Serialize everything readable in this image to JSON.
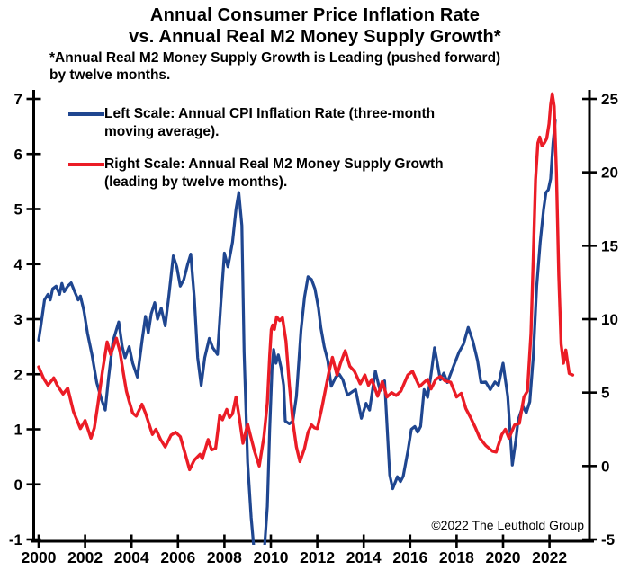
{
  "header": {
    "title_line1": "Annual Consumer Price Inflation Rate",
    "title_line2": "vs. Annual Real M2 Money Supply Growth*",
    "subtitle_line1": "*Annual Real M2 Money Supply Growth is Leading (pushed forward)",
    "subtitle_line2": "by twelve months."
  },
  "legend": {
    "entries": [
      {
        "name": "cpi",
        "color": "#1F4690",
        "line1": "Left Scale: Annual CPI Inflation Rate (three-month",
        "line2": "moving average)."
      },
      {
        "name": "m2",
        "color": "#EB1C26",
        "line1": "Right Scale: Annual Real M2 Money Supply Growth",
        "line2": "(leading by twelve months)."
      }
    ]
  },
  "copyright": "©2022 The Leuthold Group",
  "colors": {
    "cpi_blue": "#1F4690",
    "m2_red": "#EB1C26",
    "axis": "#000000",
    "background": "#FFFFFF"
  },
  "chart_data": {
    "type": "line",
    "title": "Annual Consumer Price Inflation Rate vs. Annual Real M2 Money Supply Growth*",
    "subtitle": "*Annual Real M2 Money Supply Growth is Leading (pushed forward) by twelve months.",
    "grid": false,
    "legend_position": "top-left",
    "x_axis": {
      "tick_labels": [
        2000,
        2002,
        2004,
        2006,
        2008,
        2010,
        2012,
        2014,
        2016,
        2018,
        2020,
        2022
      ],
      "range": [
        2000,
        2023.7
      ]
    },
    "left_y_axis": {
      "ticks": [
        7,
        6,
        5,
        4,
        3,
        2,
        1,
        0,
        -1
      ],
      "range": [
        -1,
        7
      ]
    },
    "right_y_axis": {
      "ticks": [
        25,
        20,
        15,
        10,
        5,
        0,
        -5
      ],
      "range": [
        -5,
        25
      ]
    },
    "series": [
      {
        "name": "Annual CPI Inflation Rate (three-month moving average)",
        "axis": "left",
        "color": "#1F4690",
        "points": [
          [
            2000.0,
            2.62
          ],
          [
            2000.1,
            2.9
          ],
          [
            2000.25,
            3.35
          ],
          [
            2000.4,
            3.45
          ],
          [
            2000.5,
            3.35
          ],
          [
            2000.6,
            3.55
          ],
          [
            2000.75,
            3.6
          ],
          [
            2000.9,
            3.45
          ],
          [
            2001.0,
            3.65
          ],
          [
            2001.1,
            3.5
          ],
          [
            2001.25,
            3.6
          ],
          [
            2001.4,
            3.66
          ],
          [
            2001.55,
            3.5
          ],
          [
            2001.7,
            3.35
          ],
          [
            2001.8,
            3.42
          ],
          [
            2001.95,
            3.15
          ],
          [
            2002.1,
            2.75
          ],
          [
            2002.3,
            2.35
          ],
          [
            2002.5,
            1.85
          ],
          [
            2002.7,
            1.55
          ],
          [
            2002.87,
            1.35
          ],
          [
            2003.0,
            1.9
          ],
          [
            2003.2,
            2.6
          ],
          [
            2003.45,
            2.95
          ],
          [
            2003.6,
            2.5
          ],
          [
            2003.72,
            2.3
          ],
          [
            2003.9,
            2.5
          ],
          [
            2004.05,
            2.2
          ],
          [
            2004.25,
            1.95
          ],
          [
            2004.45,
            2.6
          ],
          [
            2004.6,
            3.05
          ],
          [
            2004.72,
            2.75
          ],
          [
            2004.85,
            3.1
          ],
          [
            2005.0,
            3.3
          ],
          [
            2005.12,
            3.0
          ],
          [
            2005.28,
            3.2
          ],
          [
            2005.45,
            2.88
          ],
          [
            2005.6,
            3.4
          ],
          [
            2005.8,
            4.15
          ],
          [
            2005.95,
            3.95
          ],
          [
            2006.1,
            3.6
          ],
          [
            2006.25,
            3.72
          ],
          [
            2006.42,
            4.0
          ],
          [
            2006.55,
            4.18
          ],
          [
            2006.7,
            3.4
          ],
          [
            2006.85,
            2.3
          ],
          [
            2007.0,
            1.8
          ],
          [
            2007.15,
            2.3
          ],
          [
            2007.35,
            2.65
          ],
          [
            2007.5,
            2.48
          ],
          [
            2007.7,
            2.36
          ],
          [
            2007.85,
            3.3
          ],
          [
            2008.0,
            4.2
          ],
          [
            2008.15,
            3.95
          ],
          [
            2008.35,
            4.4
          ],
          [
            2008.5,
            5.0
          ],
          [
            2008.62,
            5.3
          ],
          [
            2008.75,
            4.7
          ],
          [
            2008.85,
            2.4
          ],
          [
            2009.0,
            0.4
          ],
          [
            2009.15,
            -0.6
          ],
          [
            2009.3,
            -1.3
          ],
          [
            2009.5,
            -1.7
          ],
          [
            2009.7,
            -1.3
          ],
          [
            2009.85,
            -0.4
          ],
          [
            2009.95,
            1.0
          ],
          [
            2010.05,
            2.1
          ],
          [
            2010.12,
            2.45
          ],
          [
            2010.22,
            2.2
          ],
          [
            2010.32,
            2.35
          ],
          [
            2010.45,
            2.1
          ],
          [
            2010.55,
            1.8
          ],
          [
            2010.62,
            1.15
          ],
          [
            2010.8,
            1.1
          ],
          [
            2010.95,
            1.15
          ],
          [
            2011.1,
            1.6
          ],
          [
            2011.3,
            2.8
          ],
          [
            2011.45,
            3.4
          ],
          [
            2011.6,
            3.77
          ],
          [
            2011.75,
            3.72
          ],
          [
            2011.9,
            3.55
          ],
          [
            2012.05,
            3.2
          ],
          [
            2012.15,
            2.85
          ],
          [
            2012.3,
            2.5
          ],
          [
            2012.45,
            2.25
          ],
          [
            2012.6,
            1.78
          ],
          [
            2012.8,
            1.95
          ],
          [
            2012.95,
            2.0
          ],
          [
            2013.1,
            1.9
          ],
          [
            2013.3,
            1.62
          ],
          [
            2013.5,
            1.68
          ],
          [
            2013.65,
            1.72
          ],
          [
            2013.9,
            1.2
          ],
          [
            2014.1,
            1.47
          ],
          [
            2014.25,
            1.35
          ],
          [
            2014.5,
            2.06
          ],
          [
            2014.7,
            1.7
          ],
          [
            2014.9,
            1.88
          ],
          [
            2015.0,
            1.1
          ],
          [
            2015.12,
            0.17
          ],
          [
            2015.25,
            -0.08
          ],
          [
            2015.45,
            0.14
          ],
          [
            2015.58,
            0.05
          ],
          [
            2015.7,
            0.15
          ],
          [
            2015.9,
            0.6
          ],
          [
            2016.05,
            1.0
          ],
          [
            2016.2,
            1.05
          ],
          [
            2016.32,
            0.95
          ],
          [
            2016.45,
            1.05
          ],
          [
            2016.6,
            1.72
          ],
          [
            2016.75,
            1.58
          ],
          [
            2016.9,
            2.0
          ],
          [
            2017.05,
            2.48
          ],
          [
            2017.3,
            1.9
          ],
          [
            2017.45,
            2.02
          ],
          [
            2017.6,
            1.85
          ],
          [
            2017.9,
            2.18
          ],
          [
            2018.1,
            2.4
          ],
          [
            2018.3,
            2.55
          ],
          [
            2018.5,
            2.85
          ],
          [
            2018.7,
            2.6
          ],
          [
            2018.9,
            2.25
          ],
          [
            2019.05,
            1.85
          ],
          [
            2019.25,
            1.86
          ],
          [
            2019.45,
            1.72
          ],
          [
            2019.65,
            1.86
          ],
          [
            2019.8,
            1.8
          ],
          [
            2020.0,
            2.2
          ],
          [
            2020.2,
            1.6
          ],
          [
            2020.4,
            0.35
          ],
          [
            2020.55,
            0.8
          ],
          [
            2020.65,
            1.17
          ],
          [
            2020.85,
            1.42
          ],
          [
            2021.0,
            1.3
          ],
          [
            2021.15,
            1.5
          ],
          [
            2021.3,
            2.3
          ],
          [
            2021.45,
            3.6
          ],
          [
            2021.6,
            4.4
          ],
          [
            2021.75,
            5.0
          ],
          [
            2021.85,
            5.3
          ],
          [
            2021.95,
            5.35
          ],
          [
            2022.05,
            5.55
          ],
          [
            2022.15,
            6.2
          ],
          [
            2022.25,
            6.62
          ]
        ]
      },
      {
        "name": "Annual Real M2 Money Supply Growth (leading by twelve months)",
        "axis": "right",
        "color": "#EB1C26",
        "points": [
          [
            2000.0,
            6.75
          ],
          [
            2000.2,
            6.0
          ],
          [
            2000.4,
            5.5
          ],
          [
            2000.65,
            6.0
          ],
          [
            2000.8,
            5.5
          ],
          [
            2001.05,
            4.9
          ],
          [
            2001.25,
            5.3
          ],
          [
            2001.5,
            3.7
          ],
          [
            2001.8,
            2.55
          ],
          [
            2002.0,
            3.1
          ],
          [
            2002.25,
            1.9
          ],
          [
            2002.4,
            2.6
          ],
          [
            2002.55,
            4.2
          ],
          [
            2002.75,
            6.5
          ],
          [
            2002.95,
            8.45
          ],
          [
            2003.1,
            7.6
          ],
          [
            2003.35,
            8.7
          ],
          [
            2003.5,
            7.8
          ],
          [
            2003.65,
            6.3
          ],
          [
            2003.78,
            5.1
          ],
          [
            2003.9,
            4.4
          ],
          [
            2004.05,
            3.6
          ],
          [
            2004.2,
            3.4
          ],
          [
            2004.45,
            4.2
          ],
          [
            2004.6,
            3.6
          ],
          [
            2004.9,
            2.15
          ],
          [
            2005.05,
            2.5
          ],
          [
            2005.25,
            1.8
          ],
          [
            2005.45,
            1.3
          ],
          [
            2005.7,
            2.1
          ],
          [
            2005.9,
            2.3
          ],
          [
            2006.1,
            2.0
          ],
          [
            2006.3,
            0.9
          ],
          [
            2006.5,
            -0.25
          ],
          [
            2006.7,
            0.4
          ],
          [
            2006.95,
            0.8
          ],
          [
            2007.05,
            0.5
          ],
          [
            2007.3,
            1.8
          ],
          [
            2007.45,
            1.1
          ],
          [
            2007.62,
            1.2
          ],
          [
            2007.8,
            3.45
          ],
          [
            2007.92,
            3.15
          ],
          [
            2008.1,
            3.85
          ],
          [
            2008.22,
            3.3
          ],
          [
            2008.35,
            3.55
          ],
          [
            2008.5,
            4.7
          ],
          [
            2008.65,
            3.2
          ],
          [
            2008.8,
            1.55
          ],
          [
            2009.0,
            2.85
          ],
          [
            2009.1,
            2.2
          ],
          [
            2009.3,
            1.0
          ],
          [
            2009.5,
            0.0
          ],
          [
            2009.7,
            2.0
          ],
          [
            2009.85,
            4.3
          ],
          [
            2009.95,
            7.5
          ],
          [
            2010.02,
            9.3
          ],
          [
            2010.08,
            9.6
          ],
          [
            2010.15,
            9.3
          ],
          [
            2010.25,
            10.15
          ],
          [
            2010.38,
            9.9
          ],
          [
            2010.5,
            10.1
          ],
          [
            2010.65,
            8.5
          ],
          [
            2010.8,
            5.5
          ],
          [
            2010.95,
            3.0
          ],
          [
            2011.1,
            1.3
          ],
          [
            2011.25,
            0.3
          ],
          [
            2011.45,
            1.2
          ],
          [
            2011.6,
            2.3
          ],
          [
            2011.75,
            2.8
          ],
          [
            2011.88,
            2.6
          ],
          [
            2012.0,
            2.55
          ],
          [
            2012.2,
            4.0
          ],
          [
            2012.5,
            6.4
          ],
          [
            2012.65,
            7.4
          ],
          [
            2012.85,
            6.2
          ],
          [
            2013.0,
            7.0
          ],
          [
            2013.2,
            7.85
          ],
          [
            2013.4,
            6.8
          ],
          [
            2013.6,
            6.45
          ],
          [
            2013.85,
            5.6
          ],
          [
            2014.05,
            6.2
          ],
          [
            2014.2,
            5.5
          ],
          [
            2014.35,
            5.9
          ],
          [
            2014.6,
            4.75
          ],
          [
            2014.8,
            5.75
          ],
          [
            2015.0,
            4.7
          ],
          [
            2015.2,
            5.0
          ],
          [
            2015.4,
            4.8
          ],
          [
            2015.6,
            5.1
          ],
          [
            2015.9,
            6.2
          ],
          [
            2016.1,
            6.45
          ],
          [
            2016.4,
            5.4
          ],
          [
            2016.6,
            5.7
          ],
          [
            2016.75,
            5.9
          ],
          [
            2016.9,
            5.25
          ],
          [
            2017.1,
            5.9
          ],
          [
            2017.3,
            6.1
          ],
          [
            2017.5,
            5.8
          ],
          [
            2017.75,
            5.7
          ],
          [
            2018.0,
            4.7
          ],
          [
            2018.2,
            4.95
          ],
          [
            2018.4,
            3.9
          ],
          [
            2018.6,
            3.3
          ],
          [
            2018.8,
            2.65
          ],
          [
            2019.0,
            1.9
          ],
          [
            2019.25,
            1.4
          ],
          [
            2019.55,
            1.0
          ],
          [
            2019.7,
            0.95
          ],
          [
            2019.95,
            2.15
          ],
          [
            2020.1,
            2.5
          ],
          [
            2020.25,
            1.9
          ],
          [
            2020.5,
            2.8
          ],
          [
            2020.7,
            2.9
          ],
          [
            2020.9,
            4.7
          ],
          [
            2021.05,
            5.1
          ],
          [
            2021.2,
            9.0
          ],
          [
            2021.3,
            14.0
          ],
          [
            2021.4,
            19.5
          ],
          [
            2021.5,
            22.0
          ],
          [
            2021.58,
            22.4
          ],
          [
            2021.68,
            21.8
          ],
          [
            2021.78,
            22.0
          ],
          [
            2021.88,
            22.3
          ],
          [
            2021.98,
            23.3
          ],
          [
            2022.05,
            24.6
          ],
          [
            2022.12,
            25.35
          ],
          [
            2022.2,
            24.5
          ],
          [
            2022.3,
            20.0
          ],
          [
            2022.4,
            13.0
          ],
          [
            2022.5,
            8.3
          ],
          [
            2022.6,
            7.0
          ],
          [
            2022.7,
            7.9
          ],
          [
            2022.85,
            6.3
          ],
          [
            2023.0,
            6.2
          ]
        ]
      }
    ]
  }
}
